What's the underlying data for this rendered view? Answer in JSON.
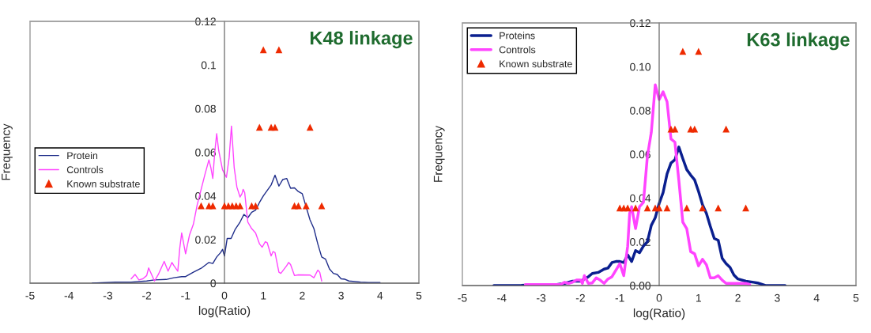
{
  "chart_data": [
    {
      "type": "line",
      "title": "K48 linkage",
      "xlabel": "log(Ratio)",
      "ylabel": "Frequency",
      "xlim": [
        -5,
        5
      ],
      "ylim": [
        0,
        0.12
      ],
      "xticks": [
        -5,
        -4,
        -3,
        -2,
        -1,
        0,
        1,
        2,
        3,
        4,
        5
      ],
      "yticks": [
        0,
        0.02,
        0.04,
        0.06,
        0.08,
        0.1,
        0.12
      ],
      "legend": "left",
      "grid": false,
      "series": [
        {
          "name": "Protein",
          "color": "#1f2d8a",
          "marker": "none",
          "x": [
            -3.4,
            -2.8,
            -2.4,
            -2,
            -1.8,
            -1.5,
            -1.3,
            -1.1,
            -1.0,
            -0.8,
            -0.6,
            -0.4,
            -0.3,
            -0.2,
            -0.1,
            -0.05,
            0,
            0.07,
            0.17,
            0.27,
            0.4,
            0.5,
            0.6,
            0.7,
            0.8,
            0.9,
            1.0,
            1.2,
            1.3,
            1.4,
            1.5,
            1.6,
            1.7,
            1.8,
            1.9,
            2.0,
            2.1,
            2.2,
            2.3,
            2.4,
            2.5,
            2.6,
            2.7,
            2.8,
            2.9,
            3.0,
            3.1,
            3.2,
            3.5,
            3.7,
            4.0
          ],
          "values": [
            0,
            0.0005,
            0.0005,
            0.001,
            0.0015,
            0.0017,
            0.0025,
            0.003,
            0.003,
            0.005,
            0.0068,
            0.0095,
            0.009,
            0.012,
            0.014,
            0.0155,
            0.0125,
            0.0205,
            0.0205,
            0.0245,
            0.028,
            0.0315,
            0.03,
            0.0325,
            0.0335,
            0.037,
            0.04,
            0.045,
            0.0495,
            0.0445,
            0.0475,
            0.048,
            0.0435,
            0.0437,
            0.042,
            0.041,
            0.035,
            0.029,
            0.025,
            0.018,
            0.012,
            0.011,
            0.0065,
            0.0045,
            0.004,
            0.002,
            0.0018,
            0.001,
            0.0005,
            0.0003,
            0.0003
          ]
        },
        {
          "name": "Controls",
          "color": "#ff44ff",
          "marker": "none",
          "x": [
            -2.4,
            -2.3,
            -2.2,
            -2.1,
            -2.0,
            -1.95,
            -1.85,
            -1.8,
            -1.7,
            -1.55,
            -1.45,
            -1.35,
            -1.3,
            -1.2,
            -1.15,
            -1.1,
            -1.0,
            -0.9,
            -0.8,
            -0.7,
            -0.6,
            -0.5,
            -0.4,
            -0.35,
            -0.3,
            -0.25,
            -0.2,
            -0.15,
            -0.05,
            0.05,
            0.12,
            0.18,
            0.25,
            0.32,
            0.4,
            0.45,
            0.48,
            0.52,
            0.6,
            0.7,
            0.8,
            0.9,
            0.97,
            1.05,
            1.1,
            1.2,
            1.25,
            1.3,
            1.4,
            1.45,
            1.6,
            1.65,
            1.7,
            1.8,
            1.9,
            2.2,
            2.3,
            2.4,
            2.45,
            2.5
          ],
          "values": [
            0.002,
            0.004,
            0.0015,
            0.002,
            0.0035,
            0.007,
            0.003,
            0.001,
            0.004,
            0.01,
            0.0055,
            0.0095,
            0.008,
            0.0055,
            0.016,
            0.023,
            0.0135,
            0.022,
            0.027,
            0.036,
            0.043,
            0.05,
            0.0565,
            0.053,
            0.048,
            0.06,
            0.0685,
            0.061,
            0.052,
            0.0485,
            0.0575,
            0.072,
            0.053,
            0.044,
            0.0395,
            0.041,
            0.043,
            0.0415,
            0.028,
            0.025,
            0.023,
            0.018,
            0.0165,
            0.019,
            0.0185,
            0.0125,
            0.0145,
            0.014,
            0.005,
            0.0045,
            0.008,
            0.0095,
            0.0085,
            0.0035,
            0.0038,
            0.0037,
            0.0025,
            0.006,
            0.005,
            0.001
          ]
        },
        {
          "name": "Known substrate",
          "type": "scatter",
          "color": "#ee2a00",
          "marker": "triangle",
          "x": [
            1.0,
            1.4,
            0.9,
            1.2,
            1.3,
            2.2,
            -0.6,
            -0.4,
            -0.3,
            0,
            0.1,
            0.2,
            0.3,
            0.4,
            0.7,
            0.8,
            1.8,
            1.9,
            2.1,
            2.5
          ],
          "values": [
            0.107,
            0.107,
            0.0715,
            0.0715,
            0.0715,
            0.0715,
            0.0355,
            0.0355,
            0.0355,
            0.0355,
            0.0355,
            0.0355,
            0.0355,
            0.0355,
            0.0355,
            0.0355,
            0.0355,
            0.0355,
            0.0355,
            0.0355
          ]
        }
      ]
    },
    {
      "type": "line",
      "title": "K63 linkage",
      "xlabel": "log(Ratio)",
      "ylabel": "Frequency",
      "xlim": [
        -5,
        5
      ],
      "ylim": [
        0,
        0.12
      ],
      "xticks": [
        -5,
        -4,
        -3,
        -2,
        -1,
        0,
        1,
        2,
        3,
        4,
        5
      ],
      "yticks": [
        {
          "value": 0,
          "label": "0.00"
        },
        {
          "value": 0.02,
          "label": "0.02"
        },
        {
          "value": 0.04,
          "label": "0.04"
        },
        {
          "value": 0.06,
          "label": "0.06"
        },
        {
          "value": 0.08,
          "label": "0.08"
        },
        {
          "value": 0.1,
          "label": "0.10"
        },
        {
          "value": 0.12,
          "label": "0.12"
        }
      ],
      "legend": "top left",
      "grid": false,
      "series": [
        {
          "name": "Proteins",
          "color": "#0a1f8f",
          "marker": "none",
          "x": [
            -4.2,
            -4.0,
            -3.8,
            -3.5,
            -3.0,
            -2.6,
            -2.4,
            -2.2,
            -2.0,
            -1.8,
            -1.7,
            -1.55,
            -1.4,
            -1.3,
            -1.2,
            -1.1,
            -1.0,
            -0.9,
            -0.8,
            -0.7,
            -0.6,
            -0.5,
            -0.4,
            -0.3,
            -0.2,
            -0.1,
            0,
            0.1,
            0.2,
            0.3,
            0.4,
            0.5,
            0.6,
            0.7,
            0.8,
            0.9,
            1.0,
            1.1,
            1.2,
            1.3,
            1.4,
            1.5,
            1.6,
            1.7,
            1.8,
            1.9,
            2.0,
            2.2,
            2.4,
            2.5,
            2.7,
            2.9,
            3.2
          ],
          "values": [
            0,
            0,
            0,
            0.0001,
            0.0005,
            0.0005,
            0.001,
            0.002,
            0.002,
            0.004,
            0.0055,
            0.006,
            0.0075,
            0.008,
            0.0105,
            0.011,
            0.011,
            0.0105,
            0.014,
            0.011,
            0.016,
            0.015,
            0.018,
            0.02,
            0.0275,
            0.031,
            0.0375,
            0.0425,
            0.051,
            0.056,
            0.0575,
            0.0633,
            0.058,
            0.053,
            0.0505,
            0.0483,
            0.043,
            0.037,
            0.033,
            0.027,
            0.0215,
            0.0207,
            0.0125,
            0.01,
            0.0083,
            0.0048,
            0.003,
            0.002,
            0.0015,
            0.0012,
            0,
            0,
            0
          ]
        },
        {
          "name": "Controls",
          "color": "#ff44ff",
          "marker": "none",
          "x": [
            -3.4,
            -3.0,
            -2.5,
            -2.4,
            -2.3,
            -2.2,
            -2.1,
            -2.0,
            -1.95,
            -1.9,
            -1.8,
            -1.7,
            -1.6,
            -1.5,
            -1.4,
            -1.3,
            -1.2,
            -1.1,
            -1.0,
            -0.9,
            -0.8,
            -0.75,
            -0.7,
            -0.6,
            -0.5,
            -0.4,
            -0.3,
            -0.2,
            -0.1,
            0,
            0.1,
            0.2,
            0.3,
            0.4,
            0.5,
            0.6,
            0.7,
            0.8,
            0.9,
            1.0,
            1.1,
            1.2,
            1.3,
            1.4,
            1.5,
            1.6,
            1.7,
            1.9,
            2.2,
            2.3
          ],
          "values": [
            0.0005,
            0.0005,
            0.0005,
            0.0015,
            0.001,
            0.0015,
            0.0025,
            0.0025,
            0.001,
            0.0045,
            0.001,
            0.0012,
            0.0035,
            0.0025,
            0.001,
            0.003,
            0.004,
            0.007,
            0.01,
            0.0045,
            0.018,
            0.033,
            0.036,
            0.026,
            0.036,
            0.038,
            0.059,
            0.07,
            0.0917,
            0.085,
            0.0885,
            0.084,
            0.067,
            0.0655,
            0.048,
            0.029,
            0.026,
            0.0155,
            0.0145,
            0.009,
            0.012,
            0.0095,
            0.0035,
            0.0035,
            0.0045,
            0.0025,
            0.001,
            0.001,
            0.001,
            0.0005
          ]
        },
        {
          "name": "Known substrate",
          "type": "scatter",
          "color": "#ee2a00",
          "marker": "triangle",
          "x": [
            0.6,
            1.0,
            0.3,
            0.4,
            0.8,
            0.9,
            1.7,
            -1.0,
            -0.9,
            -0.8,
            -0.6,
            -0.3,
            -0.1,
            0,
            0.2,
            0.7,
            1.1,
            1.5,
            2.2
          ],
          "values": [
            0.107,
            0.107,
            0.0715,
            0.0715,
            0.0715,
            0.0715,
            0.0715,
            0.0355,
            0.0355,
            0.0355,
            0.0355,
            0.0355,
            0.0355,
            0.0355,
            0.0355,
            0.0355,
            0.0355,
            0.0355,
            0.0355
          ]
        }
      ]
    }
  ]
}
